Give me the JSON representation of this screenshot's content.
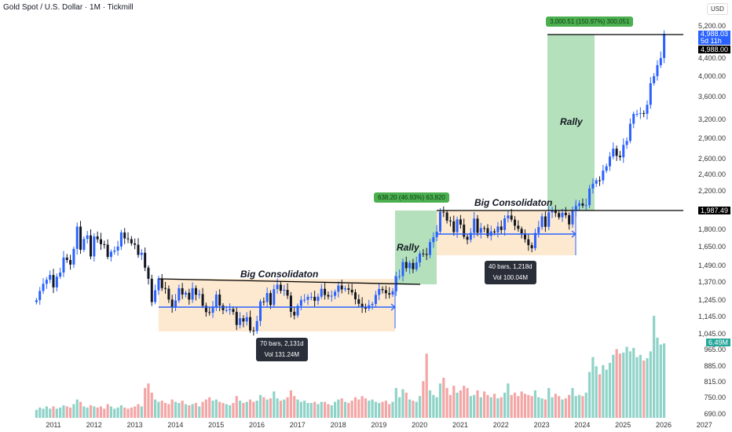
{
  "header": {
    "title": "Gold Spot / U.S. Dollar · 1M · Tickmill",
    "currency": "USD"
  },
  "price_axis": {
    "ticks": [
      "5,200.00",
      "4,400.00",
      "4,000.00",
      "3,600.00",
      "3,200.00",
      "2,900.00",
      "2,600.00",
      "2,400.00",
      "2,200.00",
      "1,800.00",
      "1,650.00",
      "1,490.00",
      "1,370.00",
      "1,245.00",
      "1,145.00",
      "1,045.00",
      "965.00",
      "885.00",
      "815.00",
      "750.00",
      "690.00"
    ],
    "tick_values": [
      5200,
      4400,
      4000,
      3600,
      3200,
      2900,
      2600,
      2400,
      2200,
      1800,
      1650,
      1490,
      1370,
      1245,
      1145,
      1045,
      965,
      885,
      815,
      750,
      690
    ],
    "last_price": "4,988.03",
    "countdown": "5d 11h",
    "line_price_top": "4,988.00",
    "line_price_mid": "1,987.49",
    "volume_label": "6.49M"
  },
  "time_axis": [
    "2011",
    "2012",
    "2013",
    "2014",
    "2015",
    "2016",
    "2017",
    "2018",
    "2019",
    "2020",
    "2021",
    "2022",
    "2023",
    "2024",
    "2025",
    "2026",
    "2027"
  ],
  "annotations": {
    "consol1": {
      "label": "Big Consolidaton",
      "tip_line1": "70 bars, 2,131d",
      "tip_line2": "Vol 131.24M"
    },
    "consol2": {
      "label": "Big Consolidaton",
      "tip_line1": "40 bars, 1,218d",
      "tip_line2": "Vol 100.04M"
    },
    "rally1": {
      "label": "Rally",
      "measure": "638.20 (46.93%) 63,820"
    },
    "rally2": {
      "label": "Rally",
      "measure": "3,000.51 (150.97%) 300,051"
    }
  },
  "colors": {
    "up": "#2962ff",
    "down": "#131722",
    "vol_up": "#8fd3c8",
    "vol_down": "#f4a6a6",
    "consol": "#fde9cf",
    "rally": "#b4e0bb",
    "range": "#2962ff"
  },
  "chart_data": {
    "type": "candlestick",
    "title": "Gold Spot / U.S. Dollar · 1M · Tickmill",
    "start": "2010-08",
    "interval": "1M",
    "yscale": "log",
    "closes": [
      1246,
      1307,
      1357,
      1386,
      1421,
      1332,
      1409,
      1439,
      1556,
      1536,
      1500,
      1628,
      1828,
      1620,
      1714,
      1746,
      1565,
      1737,
      1711,
      1668,
      1664,
      1561,
      1604,
      1614,
      1648,
      1773,
      1719,
      1712,
      1675,
      1663,
      1578,
      1595,
      1476,
      1393,
      1234,
      1312,
      1395,
      1327,
      1323,
      1250,
      1202,
      1244,
      1326,
      1283,
      1295,
      1250,
      1327,
      1282,
      1286,
      1210,
      1171,
      1167,
      1199,
      1283,
      1212,
      1183,
      1183,
      1190,
      1172,
      1095,
      1134,
      1115,
      1141,
      1064,
      1061,
      1118,
      1238,
      1234,
      1293,
      1215,
      1320,
      1351,
      1309,
      1315,
      1276,
      1173,
      1151,
      1210,
      1248,
      1249,
      1268,
      1268,
      1242,
      1269,
      1322,
      1280,
      1270,
      1275,
      1302,
      1345,
      1318,
      1325,
      1315,
      1298,
      1252,
      1223,
      1201,
      1192,
      1214,
      1222,
      1281,
      1321,
      1313,
      1292,
      1283,
      1305,
      1409,
      1413,
      1520,
      1472,
      1513,
      1464,
      1517,
      1589,
      1585,
      1577,
      1686,
      1730,
      1781,
      1975,
      1967,
      1886,
      1879,
      1776,
      1898,
      1847,
      1734,
      1707,
      1769,
      1906,
      1770,
      1814,
      1813,
      1742,
      1783,
      1774,
      1829,
      1796,
      1908,
      1937,
      1896,
      1837,
      1807,
      1765,
      1711,
      1660,
      1633,
      1768,
      1824,
      1928,
      1826,
      1969,
      1990,
      1962,
      1919,
      1965,
      1940,
      1849,
      1983,
      2036,
      2063,
      2039,
      2044,
      2230,
      2286,
      2327,
      2326,
      2447,
      2503,
      2634,
      2744,
      2643,
      2624,
      2798,
      2857,
      3124,
      3289,
      3289,
      3303,
      3290,
      3448,
      3858,
      4003,
      4239,
      4400,
      4988
    ],
    "volumes_m": [
      0.7,
      0.9,
      0.8,
      1.0,
      0.8,
      1.0,
      0.8,
      0.9,
      1.1,
      1.0,
      0.9,
      1.2,
      1.6,
      1.4,
      1.0,
      0.9,
      1.1,
      1.0,
      0.9,
      1.0,
      0.8,
      1.2,
      1.0,
      0.8,
      0.9,
      1.1,
      0.9,
      0.8,
      0.9,
      1.0,
      1.2,
      1.0,
      2.6,
      3.0,
      2.2,
      1.6,
      1.4,
      1.5,
      1.3,
      1.2,
      1.6,
      1.4,
      1.3,
      1.5,
      1.2,
      1.1,
      1.2,
      1.3,
      1.0,
      1.4,
      1.6,
      1.8,
      1.5,
      1.6,
      1.4,
      1.3,
      1.2,
      1.1,
      1.3,
      1.9,
      1.5,
      1.3,
      1.4,
      1.6,
      1.4,
      1.5,
      2.0,
      1.8,
      1.6,
      1.7,
      2.3,
      1.7,
      1.5,
      1.6,
      1.8,
      2.4,
      1.9,
      1.6,
      1.4,
      1.5,
      1.3,
      1.3,
      1.4,
      1.2,
      1.4,
      1.4,
      1.2,
      1.1,
      1.4,
      1.6,
      1.7,
      1.4,
      1.3,
      1.5,
      1.8,
      1.6,
      1.9,
      1.7,
      1.5,
      1.6,
      1.4,
      1.3,
      1.4,
      1.5,
      1.2,
      1.4,
      2.6,
      1.8,
      2.5,
      2.2,
      1.6,
      1.5,
      1.4,
      1.9,
      3.2,
      5.6,
      2.4,
      2.0,
      1.8,
      3.0,
      3.5,
      2.6,
      2.0,
      2.8,
      2.2,
      2.4,
      2.8,
      2.6,
      1.9,
      2.0,
      2.4,
      1.8,
      2.3,
      2.0,
      1.8,
      2.1,
      1.7,
      1.8,
      2.2,
      3.0,
      2.0,
      2.2,
      1.9,
      2.3,
      2.1,
      2.0,
      1.9,
      2.4,
      1.8,
      1.7,
      1.6,
      2.6,
      1.8,
      2.1,
      1.9,
      1.6,
      1.7,
      2.0,
      2.6,
      1.9,
      2.0,
      1.9,
      2.2,
      4.0,
      5.3,
      4.5,
      3.8,
      4.6,
      4.2,
      4.8,
      5.5,
      6.0,
      5.6,
      5.7,
      6.2,
      5.8,
      6.1,
      5.3,
      5.5,
      5.0,
      5.2,
      5.8,
      8.9,
      7.0,
      6.4,
      6.49
    ],
    "horizontal_levels": [
      4988.0,
      1987.49
    ]
  }
}
